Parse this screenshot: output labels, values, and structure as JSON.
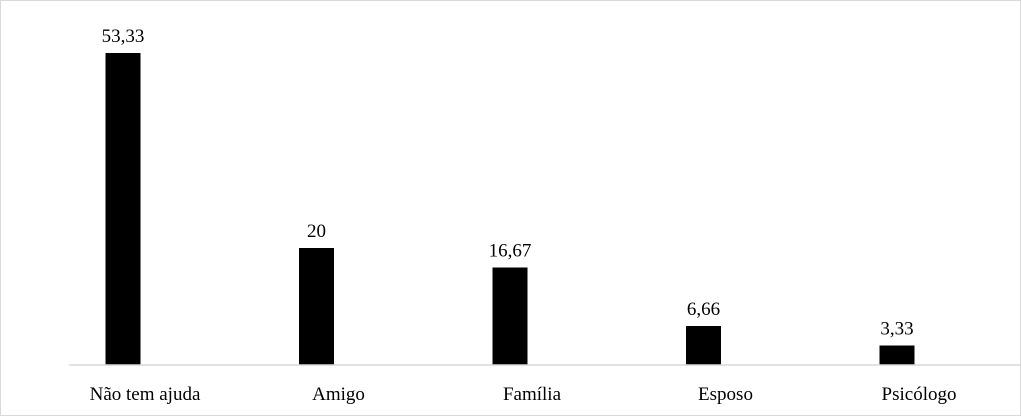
{
  "chart_data": {
    "type": "bar",
    "title": "",
    "xlabel": "",
    "ylabel": "",
    "categories": [
      "Não tem ajuda",
      "Amigo",
      "Família",
      "Esposo",
      "Psicólogo"
    ],
    "values": [
      53.33,
      20,
      16.67,
      6.66,
      3.33
    ],
    "data_labels": [
      "53,33",
      "20",
      "16,67",
      "6,66",
      "3,33"
    ],
    "ylim": [
      0,
      53.33
    ],
    "grid": false,
    "legend": "none",
    "bar_color": "#000000",
    "axis_color": "#d9d9d9",
    "border_color": "#d9d9d9"
  }
}
